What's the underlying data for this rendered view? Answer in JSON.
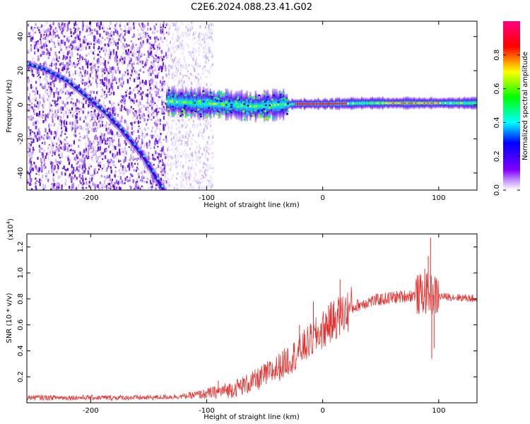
{
  "title": "C2E6.2024.088.23.41.G02",
  "colors": {
    "snr_line": "#e8312e",
    "track": "#6a0de0",
    "noise_purple": "#8a3cf0"
  },
  "chart_data": [
    {
      "type": "heatmap",
      "name": "spectrogram",
      "xlabel": "Height of straight line (km)",
      "ylabel": "Frequency (Hz)",
      "xlim": [
        -255,
        133
      ],
      "ylim": [
        -50,
        49
      ],
      "xticks": [
        -200,
        -100,
        0,
        100
      ],
      "xtick_labels": [
        "-200",
        "-100",
        "0",
        "100"
      ],
      "yticks": [
        -40,
        -20,
        0,
        20,
        40
      ],
      "ytick_labels": [
        "-40",
        "-20",
        "0",
        "20",
        "40"
      ],
      "noisy_region_x": [
        -255,
        -135
      ],
      "sparse_region_x": [
        -135,
        -95
      ],
      "falling_track": [
        [
          -255,
          24
        ],
        [
          -240,
          21
        ],
        [
          -220,
          14
        ],
        [
          -200,
          3
        ],
        [
          -185,
          -6
        ],
        [
          -170,
          -17
        ],
        [
          -155,
          -30
        ],
        [
          -145,
          -41
        ],
        [
          -137,
          -50
        ]
      ],
      "flat_band": [
        [
          -135,
          2
        ],
        [
          -110,
          1
        ],
        [
          -80,
          0
        ],
        [
          -60,
          -1
        ],
        [
          -40,
          0
        ],
        [
          -20,
          0.5
        ],
        [
          0,
          0.5
        ],
        [
          40,
          1
        ],
        [
          80,
          1
        ],
        [
          133,
          1
        ]
      ],
      "colorbar": {
        "label": "Normalized spectral amplitude",
        "range": [
          0,
          1
        ],
        "ticks": [
          0.0,
          0.2,
          0.4,
          0.6,
          0.8
        ],
        "tick_labels": [
          "0.0",
          "0.2",
          "0.4",
          "0.6",
          "0.8"
        ],
        "colormap": [
          "#ffffff",
          "#8000ff",
          "#0000ff",
          "#00ffff",
          "#00ff00",
          "#ffff00",
          "#ff0000",
          "#ff00a0"
        ]
      }
    },
    {
      "type": "line",
      "name": "snr",
      "xlabel": "Height of straight line (km)",
      "ylabel": "SNR (10 * v/v)",
      "scale_label": "(x10",
      "scale_exp": "4",
      "scale_close": ")",
      "xlim": [
        -255,
        133
      ],
      "ylim": [
        0,
        1.3
      ],
      "xticks": [
        -200,
        -100,
        0,
        100
      ],
      "xtick_labels": [
        "-200",
        "-100",
        "0",
        "100"
      ],
      "yticks": [
        0.2,
        0.4,
        0.6,
        0.8,
        1.0,
        1.2
      ],
      "ytick_labels": [
        "0.2",
        "0.4",
        "0.6",
        "0.8",
        "1.0",
        "1.2"
      ],
      "envelope": [
        [
          -255,
          0.04
        ],
        [
          -200,
          0.04
        ],
        [
          -150,
          0.04
        ],
        [
          -120,
          0.05
        ],
        [
          -100,
          0.07
        ],
        [
          -80,
          0.1
        ],
        [
          -60,
          0.16
        ],
        [
          -40,
          0.26
        ],
        [
          -25,
          0.36
        ],
        [
          -10,
          0.48
        ],
        [
          0,
          0.56
        ],
        [
          10,
          0.64
        ],
        [
          20,
          0.7
        ],
        [
          30,
          0.75
        ],
        [
          40,
          0.78
        ],
        [
          60,
          0.81
        ],
        [
          80,
          0.83
        ],
        [
          90,
          0.84
        ],
        [
          100,
          0.82
        ],
        [
          120,
          0.81
        ],
        [
          133,
          0.8
        ]
      ],
      "spikes": [
        [
          -90,
          0.17
        ],
        [
          -30,
          0.42
        ],
        [
          -20,
          0.6
        ],
        [
          -8,
          0.78
        ],
        [
          5,
          0.75
        ],
        [
          15,
          0.95
        ],
        [
          88,
          1.03
        ],
        [
          91,
          1.13
        ],
        [
          93,
          1.27
        ],
        [
          94,
          0.34
        ],
        [
          96,
          0.42
        ]
      ]
    }
  ]
}
